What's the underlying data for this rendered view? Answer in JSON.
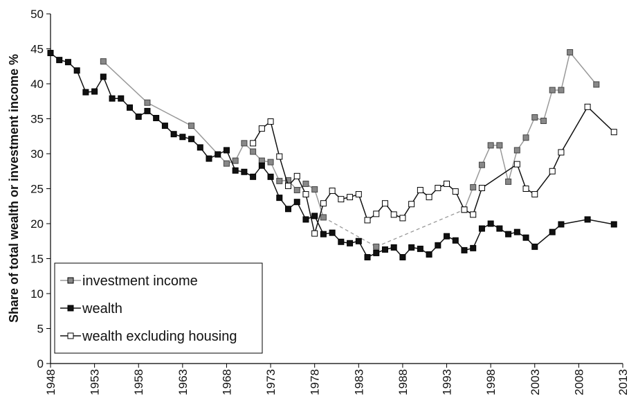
{
  "chart_data": {
    "type": "line",
    "y_label": "Share of total wealth or investment income %",
    "xlim": [
      1948,
      2013
    ],
    "xticks": [
      1948,
      1953,
      1958,
      1963,
      1968,
      1973,
      1978,
      1983,
      1988,
      1993,
      1998,
      2003,
      2008,
      2013
    ],
    "ylim": [
      0,
      50
    ],
    "yticks": [
      0,
      5,
      10,
      15,
      20,
      25,
      30,
      35,
      40,
      45,
      50
    ],
    "grid": false,
    "legend": "lower left",
    "series": [
      {
        "name": "investment income",
        "color": "#999999",
        "marker_color": "#888888",
        "x": [
          1954,
          1959,
          1964,
          1968,
          1969,
          1970,
          1971,
          1972,
          1973,
          1974,
          1975,
          1976,
          1977,
          1978,
          1979,
          1985,
          1995,
          1996,
          1997,
          1998,
          1999,
          2000,
          2001,
          2002,
          2003,
          2004,
          2005,
          2006,
          2007,
          2010
        ],
        "values": [
          43.2,
          37.3,
          34.0,
          28.6,
          29.0,
          31.5,
          30.3,
          29.0,
          28.8,
          26.1,
          26.2,
          24.8,
          25.7,
          24.9,
          20.9,
          16.7,
          22.0,
          25.2,
          28.4,
          31.2,
          31.2,
          26.0,
          30.5,
          32.3,
          35.2,
          34.7,
          39.1,
          39.1,
          44.5,
          39.9
        ]
      },
      {
        "name": "wealth",
        "color": "#111111",
        "marker_color": "#111111",
        "x": [
          1948,
          1949,
          1950,
          1951,
          1952,
          1953,
          1954,
          1955,
          1956,
          1957,
          1958,
          1959,
          1960,
          1961,
          1962,
          1963,
          1964,
          1965,
          1966,
          1967,
          1968,
          1969,
          1970,
          1971,
          1972,
          1973,
          1974,
          1975,
          1976,
          1977,
          1978,
          1979,
          1980,
          1981,
          1982,
          1983,
          1984,
          1985,
          1986,
          1987,
          1988,
          1989,
          1990,
          1991,
          1992,
          1993,
          1994,
          1995,
          1996,
          1997,
          1998,
          1999,
          2000,
          2001,
          2002,
          2003,
          2005,
          2006,
          2009,
          2012
        ],
        "values": [
          44.4,
          43.4,
          43.1,
          41.9,
          38.8,
          38.9,
          41.0,
          37.9,
          37.9,
          36.6,
          35.3,
          36.1,
          35.1,
          34.0,
          32.8,
          32.4,
          32.1,
          30.9,
          29.3,
          29.9,
          30.5,
          27.6,
          27.4,
          26.7,
          28.3,
          26.7,
          23.7,
          22.1,
          23.1,
          20.6,
          21.1,
          18.5,
          18.7,
          17.4,
          17.2,
          17.5,
          15.2,
          15.8,
          16.3,
          16.6,
          15.2,
          16.6,
          16.4,
          15.6,
          16.9,
          18.2,
          17.6,
          16.2,
          16.5,
          19.3,
          20.0,
          19.3,
          18.5,
          18.8,
          18.0,
          16.7,
          18.8,
          19.9,
          20.6,
          19.9
        ]
      },
      {
        "name": "wealth excluding housing",
        "color": "#111111",
        "marker_color": "#ffffff",
        "x": [
          1971,
          1972,
          1973,
          1974,
          1975,
          1976,
          1977,
          1978,
          1979,
          1980,
          1981,
          1982,
          1983,
          1984,
          1985,
          1986,
          1987,
          1988,
          1989,
          1990,
          1991,
          1992,
          1993,
          1994,
          1995,
          1996,
          1997,
          2001,
          2002,
          2003,
          2005,
          2006,
          2009,
          2012
        ],
        "values": [
          31.5,
          33.6,
          34.6,
          29.6,
          25.4,
          26.8,
          24.2,
          18.6,
          22.9,
          24.7,
          23.5,
          23.8,
          24.2,
          20.5,
          21.4,
          22.9,
          21.3,
          20.8,
          22.8,
          24.8,
          23.8,
          25.1,
          25.7,
          24.6,
          22.0,
          21.3,
          25.1,
          28.5,
          25.0,
          24.2,
          27.5,
          30.2,
          36.7,
          33.1
        ]
      }
    ]
  }
}
